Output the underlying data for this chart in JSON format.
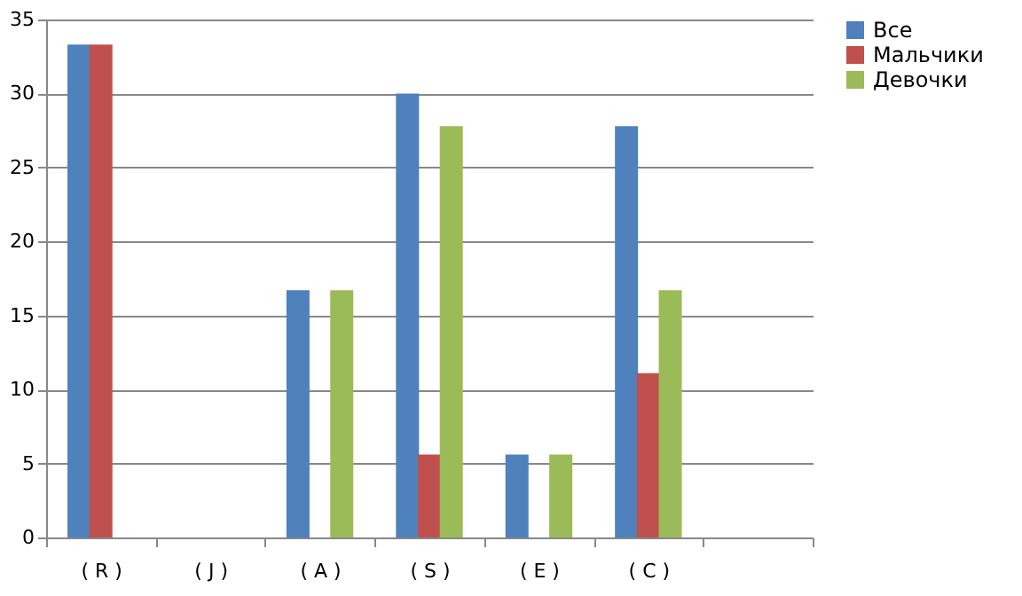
{
  "chart_data": {
    "type": "bar",
    "categories": [
      "( R )",
      "( J )",
      "( A )",
      "( S )",
      "( E )",
      "( C )",
      null
    ],
    "series": [
      {
        "name": "Все",
        "color": "#4f81bd",
        "values": [
          33.3,
          0,
          16.7,
          30,
          5.6,
          27.8,
          null
        ]
      },
      {
        "name": "Мальчики",
        "color": "#c0504d",
        "values": [
          33.3,
          0,
          0,
          5.6,
          0,
          11.1,
          null
        ]
      },
      {
        "name": "Девочки",
        "color": "#9bbb59",
        "values": [
          0,
          0,
          16.7,
          27.8,
          5.6,
          16.7,
          null
        ]
      }
    ],
    "ylim": [
      0,
      35
    ],
    "yticks": [
      0,
      5,
      10,
      15,
      20,
      25,
      30,
      35
    ],
    "grid": "y",
    "legend": "right"
  }
}
